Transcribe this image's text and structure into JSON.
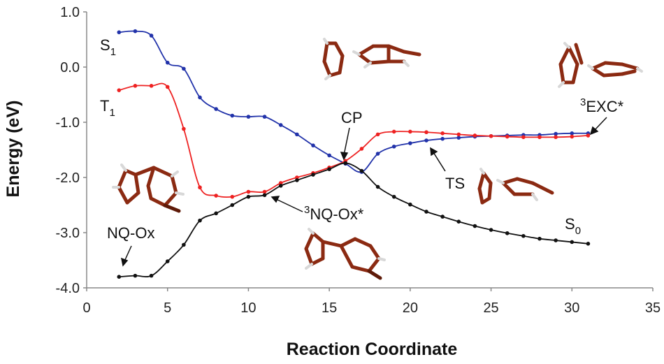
{
  "chart_data": {
    "type": "line",
    "xlabel": "Reaction Coordinate",
    "ylabel": "Energy (eV)",
    "xlim": [
      0,
      35
    ],
    "ylim": [
      -4.0,
      1.0
    ],
    "x_ticks": [
      "0",
      "5",
      "10",
      "15",
      "20",
      "25",
      "30",
      "35"
    ],
    "y_ticks": [
      "1.0",
      "0.0",
      "-1.0",
      "-2.0",
      "-3.0",
      "-4.0"
    ],
    "grid": false,
    "series": [
      {
        "name": "S1",
        "color": "#2233aa",
        "x": [
          2,
          3,
          4,
          5,
          6,
          7,
          8,
          9,
          10,
          11,
          12,
          13,
          14,
          15,
          16,
          17,
          18,
          19,
          20,
          21,
          22,
          23,
          24,
          25,
          26,
          27,
          28,
          29,
          30,
          31
        ],
        "y": [
          0.63,
          0.65,
          0.57,
          0.08,
          -0.03,
          -0.55,
          -0.76,
          -0.88,
          -0.9,
          -0.9,
          -1.05,
          -1.22,
          -1.42,
          -1.6,
          -1.75,
          -1.9,
          -1.57,
          -1.44,
          -1.38,
          -1.33,
          -1.3,
          -1.28,
          -1.26,
          -1.25,
          -1.24,
          -1.23,
          -1.23,
          -1.21,
          -1.2,
          -1.2
        ]
      },
      {
        "name": "T1",
        "color": "#ee2222",
        "x": [
          2,
          3,
          4,
          5,
          6,
          7,
          8,
          9,
          10,
          11,
          12,
          13,
          14,
          15,
          16,
          17,
          18,
          19,
          20,
          21,
          22,
          23,
          24,
          25,
          26,
          27,
          28,
          29,
          30,
          31
        ],
        "y": [
          -0.42,
          -0.34,
          -0.34,
          -0.36,
          -1.12,
          -2.18,
          -2.33,
          -2.35,
          -2.26,
          -2.26,
          -2.1,
          -2.0,
          -1.92,
          -1.82,
          -1.7,
          -1.48,
          -1.22,
          -1.17,
          -1.17,
          -1.18,
          -1.2,
          -1.22,
          -1.24,
          -1.25,
          -1.26,
          -1.27,
          -1.27,
          -1.27,
          -1.26,
          -1.24
        ]
      },
      {
        "name": "S0",
        "color": "#111111",
        "x": [
          2,
          3,
          4,
          5,
          6,
          7,
          8,
          9,
          10,
          11,
          12,
          13,
          14,
          15,
          16,
          17,
          18,
          19,
          20,
          21,
          22,
          23,
          24,
          25,
          26,
          27,
          28,
          29,
          30,
          31
        ],
        "y": [
          -3.8,
          -3.78,
          -3.78,
          -3.52,
          -3.22,
          -2.78,
          -2.65,
          -2.5,
          -2.35,
          -2.32,
          -2.15,
          -2.05,
          -1.95,
          -1.85,
          -1.74,
          -1.88,
          -2.17,
          -2.35,
          -2.49,
          -2.62,
          -2.71,
          -2.8,
          -2.88,
          -2.95,
          -3.01,
          -3.06,
          -3.11,
          -3.14,
          -3.17,
          -3.2
        ]
      }
    ],
    "annotations": {
      "s1": {
        "main": "S",
        "sub": "1"
      },
      "t1": {
        "main": "T",
        "sub": "1"
      },
      "s0": {
        "main": "S",
        "sub": "0"
      },
      "cp": "CP",
      "exc": {
        "sup": "3",
        "main": "EXC*"
      },
      "ts": "TS",
      "nqox": "NQ-Ox",
      "nqox_star": {
        "sup": "3",
        "main": "NQ-Ox*"
      }
    }
  }
}
